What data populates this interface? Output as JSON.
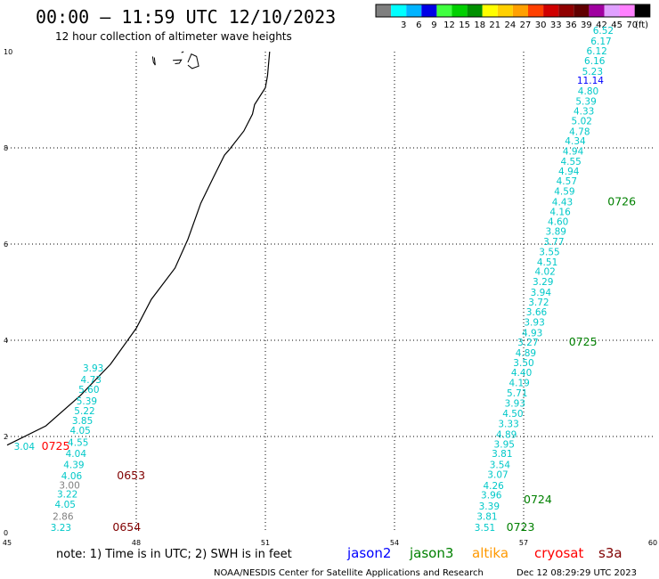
{
  "header": {
    "title": "00:00 – 11:59 UTC 12/10/2023",
    "subtitle": "12 hour collection of altimeter wave heights"
  },
  "colorbar": {
    "unit": "(ft)",
    "swatches": [
      {
        "label": "",
        "color": "#7f7f7f"
      },
      {
        "label": "3",
        "color": "#00ffff"
      },
      {
        "label": "6",
        "color": "#00b4ff"
      },
      {
        "label": "9",
        "color": "#0000e6"
      },
      {
        "label": "12",
        "color": "#40ff40"
      },
      {
        "label": "15",
        "color": "#00d000"
      },
      {
        "label": "18",
        "color": "#009000"
      },
      {
        "label": "21",
        "color": "#ffff00"
      },
      {
        "label": "24",
        "color": "#ffd000"
      },
      {
        "label": "27",
        "color": "#ffa000"
      },
      {
        "label": "30",
        "color": "#ff4000"
      },
      {
        "label": "33",
        "color": "#d00000"
      },
      {
        "label": "36",
        "color": "#900000"
      },
      {
        "label": "39",
        "color": "#600000"
      },
      {
        "label": "42",
        "color": "#a000a0"
      },
      {
        "label": "45",
        "color": "#e0a0ff"
      },
      {
        "label": "70",
        "color": "#ff80ff"
      },
      {
        "label": "",
        "color": "#000000"
      }
    ]
  },
  "footer": {
    "note": "note: 1) Time is in UTC; 2) SWH is in feet",
    "credit": "NOAA/NESDIS Center for Satellite Applications and Research",
    "timestamp": "Dec 12 08:29:29 UTC 2023"
  },
  "legend": [
    {
      "name": "jason2",
      "color": "#0000ff"
    },
    {
      "name": "jason3",
      "color": "#008000"
    },
    {
      "name": "altika",
      "color": "#ff9900"
    },
    {
      "name": "cryosat",
      "color": "#ff0000"
    },
    {
      "name": "s3a",
      "color": "#800000"
    }
  ],
  "chart_data": {
    "type": "scatter",
    "xlim": [
      45,
      60
    ],
    "ylim": [
      0,
      10
    ],
    "x_ticks": [
      45,
      48,
      51,
      54,
      57,
      60
    ],
    "y_ticks": [
      0,
      2,
      4,
      6,
      8,
      10
    ],
    "grid": true,
    "series": [
      {
        "name": "cryosat",
        "color": "#00c8c8",
        "points": [
          {
            "x": 45.4,
            "y": 1.72,
            "label": "3.04"
          },
          {
            "x": 47.0,
            "y": 3.35,
            "label": "3.93"
          },
          {
            "x": 46.95,
            "y": 3.11,
            "label": "4.73"
          },
          {
            "x": 46.9,
            "y": 2.91,
            "label": "5.60"
          },
          {
            "x": 46.85,
            "y": 2.67,
            "label": "5.39"
          },
          {
            "x": 46.8,
            "y": 2.46,
            "label": "5.22"
          },
          {
            "x": 46.75,
            "y": 2.26,
            "label": "3.85"
          },
          {
            "x": 46.7,
            "y": 2.06,
            "label": "4.05"
          },
          {
            "x": 46.65,
            "y": 1.81,
            "label": "4.55"
          },
          {
            "x": 46.6,
            "y": 1.57,
            "label": "4.04"
          },
          {
            "x": 46.55,
            "y": 1.34,
            "label": "4.39"
          },
          {
            "x": 46.5,
            "y": 1.11,
            "label": "4.06"
          },
          {
            "x": 46.45,
            "y": 0.92,
            "label": "3.00",
            "color": "#7f7f7f"
          },
          {
            "x": 46.4,
            "y": 0.73,
            "label": "3.22"
          },
          {
            "x": 46.35,
            "y": 0.52,
            "label": "4.05"
          },
          {
            "x": 46.3,
            "y": 0.27,
            "label": "2.86",
            "color": "#7f7f7f"
          },
          {
            "x": 46.25,
            "y": 0.04,
            "label": "3.23"
          }
        ]
      },
      {
        "name": "jason3",
        "color": "#00c8c8",
        "points": [
          {
            "x": 56.1,
            "y": 0.04,
            "label": "3.51"
          },
          {
            "x": 56.15,
            "y": 0.27,
            "label": "3.81"
          },
          {
            "x": 56.2,
            "y": 0.48,
            "label": "3.39"
          },
          {
            "x": 56.25,
            "y": 0.71,
            "label": "3.96"
          },
          {
            "x": 56.3,
            "y": 0.91,
            "label": "4.26"
          },
          {
            "x": 56.4,
            "y": 1.14,
            "label": "3.07"
          },
          {
            "x": 56.45,
            "y": 1.34,
            "label": "3.54"
          },
          {
            "x": 56.5,
            "y": 1.57,
            "label": "3.81"
          },
          {
            "x": 56.55,
            "y": 1.77,
            "label": "3.95"
          },
          {
            "x": 56.6,
            "y": 1.97,
            "label": "4.89"
          },
          {
            "x": 56.65,
            "y": 2.19,
            "label": "3.33"
          },
          {
            "x": 56.75,
            "y": 2.41,
            "label": "4.50"
          },
          {
            "x": 56.8,
            "y": 2.62,
            "label": "3.93"
          },
          {
            "x": 56.85,
            "y": 2.83,
            "label": "5.71"
          },
          {
            "x": 56.9,
            "y": 3.05,
            "label": "4.19"
          },
          {
            "x": 56.95,
            "y": 3.26,
            "label": "4.40"
          },
          {
            "x": 57.0,
            "y": 3.46,
            "label": "3.50"
          },
          {
            "x": 57.05,
            "y": 3.67,
            "label": "4.89"
          },
          {
            "x": 57.1,
            "y": 3.89,
            "label": "3.27"
          },
          {
            "x": 57.2,
            "y": 4.08,
            "label": "4.93"
          },
          {
            "x": 57.25,
            "y": 4.31,
            "label": "3.93"
          },
          {
            "x": 57.3,
            "y": 4.52,
            "label": "3.66"
          },
          {
            "x": 57.35,
            "y": 4.72,
            "label": "3.72"
          },
          {
            "x": 57.4,
            "y": 4.93,
            "label": "3.94"
          },
          {
            "x": 57.45,
            "y": 5.15,
            "label": "3.29"
          },
          {
            "x": 57.5,
            "y": 5.36,
            "label": "4.02"
          },
          {
            "x": 57.55,
            "y": 5.56,
            "label": "4.51"
          },
          {
            "x": 57.6,
            "y": 5.77,
            "label": "3.55"
          },
          {
            "x": 57.7,
            "y": 5.98,
            "label": "3.77"
          },
          {
            "x": 57.75,
            "y": 6.19,
            "label": "3.89"
          },
          {
            "x": 57.8,
            "y": 6.4,
            "label": "4.60"
          },
          {
            "x": 57.85,
            "y": 6.6,
            "label": "4.16"
          },
          {
            "x": 57.9,
            "y": 6.81,
            "label": "4.43"
          },
          {
            "x": 57.95,
            "y": 7.03,
            "label": "4.59"
          },
          {
            "x": 58.0,
            "y": 7.24,
            "label": "4.57"
          },
          {
            "x": 58.05,
            "y": 7.44,
            "label": "4.94"
          },
          {
            "x": 58.1,
            "y": 7.65,
            "label": "4.55"
          },
          {
            "x": 58.15,
            "y": 7.86,
            "label": "4.94"
          },
          {
            "x": 58.2,
            "y": 8.07,
            "label": "4.34"
          },
          {
            "x": 58.3,
            "y": 8.27,
            "label": "4.78"
          },
          {
            "x": 58.35,
            "y": 8.49,
            "label": "5.02"
          },
          {
            "x": 58.4,
            "y": 8.69,
            "label": "4.33"
          },
          {
            "x": 58.45,
            "y": 8.9,
            "label": "5.39"
          },
          {
            "x": 58.5,
            "y": 9.11,
            "label": "4.80"
          },
          {
            "x": 58.55,
            "y": 9.33,
            "label": "11.14",
            "color": "#0000ff"
          },
          {
            "x": 58.6,
            "y": 9.52,
            "label": "5.23"
          },
          {
            "x": 58.65,
            "y": 9.74,
            "label": "6.16"
          },
          {
            "x": 58.7,
            "y": 9.94,
            "label": "6.12"
          },
          {
            "x": 58.8,
            "y": 10.15,
            "label": "6.17"
          },
          {
            "x": 58.85,
            "y": 10.37,
            "label": "6.52"
          }
        ]
      }
    ],
    "time_labels": [
      {
        "x": 45.8,
        "y": 1.72,
        "text": "0725",
        "color": "#ff0000"
      },
      {
        "x": 47.55,
        "y": 1.11,
        "text": "0653",
        "color": "#800000"
      },
      {
        "x": 47.45,
        "y": 0.04,
        "text": "0654",
        "color": "#800000"
      },
      {
        "x": 56.6,
        "y": 0.04,
        "text": "0723",
        "color": "#008000"
      },
      {
        "x": 57.0,
        "y": 0.61,
        "text": "0724",
        "color": "#008000"
      },
      {
        "x": 58.05,
        "y": 3.89,
        "text": "0725",
        "color": "#008000"
      },
      {
        "x": 58.95,
        "y": 6.81,
        "text": "0726",
        "color": "#008000"
      }
    ],
    "coastline": [
      [
        45.0,
        1.82
      ],
      [
        45.9,
        2.22
      ],
      [
        46.7,
        2.85
      ],
      [
        47.4,
        3.5
      ],
      [
        48.0,
        4.25
      ],
      [
        48.35,
        4.85
      ],
      [
        48.9,
        5.5
      ],
      [
        49.2,
        6.1
      ],
      [
        49.5,
        6.85
      ],
      [
        49.8,
        7.4
      ],
      [
        50.05,
        7.85
      ],
      [
        50.15,
        7.95
      ],
      [
        50.5,
        8.35
      ],
      [
        50.7,
        8.7
      ],
      [
        50.75,
        8.9
      ],
      [
        51.0,
        9.25
      ],
      [
        51.05,
        9.5
      ],
      [
        51.1,
        10.0
      ]
    ],
    "islands": [
      [
        [
          48.38,
          9.9
        ],
        [
          48.4,
          9.78
        ],
        [
          48.44,
          9.72
        ],
        [
          48.42,
          9.88
        ]
      ],
      [
        [
          48.85,
          9.82
        ],
        [
          49.05,
          9.83
        ],
        [
          49.0,
          9.76
        ],
        [
          48.9,
          9.75
        ]
      ],
      [
        [
          49.2,
          9.78
        ],
        [
          49.28,
          9.95
        ],
        [
          49.4,
          9.9
        ],
        [
          49.45,
          9.7
        ],
        [
          49.3,
          9.65
        ],
        [
          49.2,
          9.72
        ]
      ],
      [
        [
          49.05,
          9.98
        ],
        [
          49.1,
          10.0
        ]
      ]
    ]
  }
}
